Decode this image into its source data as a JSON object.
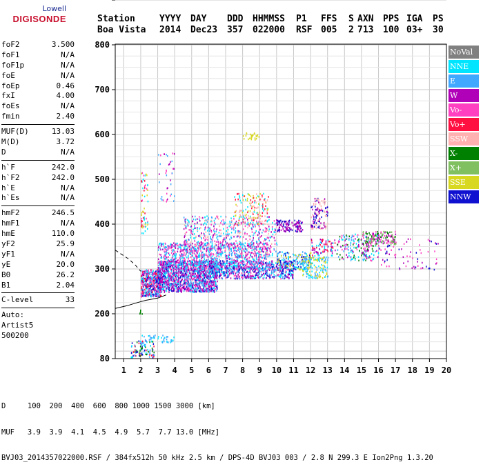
{
  "logo": {
    "line1": "Lowell",
    "line2": "DIGISONDE"
  },
  "header": {
    "labels": [
      "Station",
      "YYYY",
      "DAY",
      "DDD",
      "HHMMSS",
      "P1",
      "FFS",
      "S",
      "AXN",
      "PPS",
      "IGA",
      "PS"
    ],
    "values": [
      "Boa Vista",
      "2014",
      "Dec23",
      "357",
      "022000",
      "RSF",
      "005",
      "2",
      "713",
      "100",
      "03+",
      "30"
    ]
  },
  "params": [
    {
      "group": [
        {
          "k": "foF2",
          "v": "3.500"
        },
        {
          "k": "foF1",
          "v": "N/A"
        },
        {
          "k": "foF1p",
          "v": "N/A"
        },
        {
          "k": "foE",
          "v": "N/A"
        },
        {
          "k": "foEp",
          "v": "0.46"
        },
        {
          "k": "fxI",
          "v": "4.00"
        },
        {
          "k": "foEs",
          "v": "N/A"
        },
        {
          "k": "fmin",
          "v": "2.40"
        }
      ]
    },
    {
      "group": [
        {
          "k": "MUF(D)",
          "v": "13.03"
        },
        {
          "k": "M(D)",
          "v": "3.72"
        },
        {
          "k": "D",
          "v": "N/A"
        }
      ]
    },
    {
      "group": [
        {
          "k": "h`F",
          "v": "242.0"
        },
        {
          "k": "h`F2",
          "v": "242.0"
        },
        {
          "k": "h`E",
          "v": "N/A"
        },
        {
          "k": "h`Es",
          "v": "N/A"
        }
      ]
    },
    {
      "group": [
        {
          "k": "hmF2",
          "v": "246.5"
        },
        {
          "k": "hmF1",
          "v": "N/A"
        },
        {
          "k": "hmE",
          "v": "110.0"
        },
        {
          "k": "yF2",
          "v": "25.9"
        },
        {
          "k": "yF1",
          "v": "N/A"
        },
        {
          "k": "yE",
          "v": "20.0"
        },
        {
          "k": "B0",
          "v": "26.2"
        },
        {
          "k": "B1",
          "v": "2.04"
        }
      ]
    },
    {
      "group": [
        {
          "k": "C-level",
          "v": "33"
        }
      ]
    },
    {
      "group": [
        {
          "k": "Auto:",
          "v": ""
        },
        {
          "k": "Artist5",
          "v": ""
        },
        {
          "k": "500200",
          "v": ""
        }
      ]
    }
  ],
  "legend": [
    {
      "label": "NoVal",
      "color": "#808080"
    },
    {
      "label": "NNE",
      "color": "#00e5ff"
    },
    {
      "label": "E",
      "color": "#40a8ff"
    },
    {
      "label": "W",
      "color": "#b000b8"
    },
    {
      "label": "Vo-",
      "color": "#ff40c0"
    },
    {
      "label": "Vo+",
      "color": "#ff1040"
    },
    {
      "label": "SSW",
      "color": "#ffb0b0"
    },
    {
      "label": "X-",
      "color": "#008000"
    },
    {
      "label": "X+",
      "color": "#80c060"
    },
    {
      "label": "SSE",
      "color": "#d8d820"
    },
    {
      "label": "NNW",
      "color": "#1010d0"
    }
  ],
  "footer": {
    "line1": "D     100  200  400  600  800 1000 1500 3000 [km]",
    "line2": "MUF   3.9  3.9  4.1  4.5  4.9  5.7  7.7 13.0 [MHz]",
    "line3": "BVJ03_2014357022000.RSF / 384fx512h 50 kHz 2.5 km / DPS-4D BVJ03 003 / 2.8 N 299.3 E Ion2Png 1.3.20"
  },
  "chart_data": {
    "type": "scatter",
    "xlim": [
      0.5,
      20
    ],
    "ylim": [
      80,
      900
    ],
    "x_ticks": [
      1,
      2,
      3,
      4,
      5,
      6,
      7,
      8,
      9,
      10,
      11,
      12,
      13,
      14,
      15,
      16,
      17,
      18,
      19,
      20
    ],
    "y_ticks": [
      80,
      200,
      300,
      400,
      500,
      600,
      700,
      800,
      900
    ],
    "grid": true,
    "clusters": [
      {
        "x": [
          2.0,
          3.2
        ],
        "y": [
          240,
          300
        ],
        "n": 500,
        "colors": [
          3,
          4,
          5,
          2,
          1,
          10
        ]
      },
      {
        "x": [
          3.0,
          6.5
        ],
        "y": [
          250,
          320
        ],
        "n": 1400,
        "colors": [
          3,
          2,
          10,
          4,
          1,
          3
        ]
      },
      {
        "x": [
          3.0,
          9.5
        ],
        "y": [
          300,
          360
        ],
        "n": 900,
        "colors": [
          1,
          2,
          3,
          4
        ]
      },
      {
        "x": [
          4.5,
          10.0
        ],
        "y": [
          330,
          420
        ],
        "n": 600,
        "colors": [
          3,
          4,
          6,
          1,
          2
        ]
      },
      {
        "x": [
          6.0,
          11.0
        ],
        "y": [
          280,
          320
        ],
        "n": 700,
        "colors": [
          3,
          10,
          1,
          2,
          4
        ]
      },
      {
        "x": [
          7.5,
          9.5
        ],
        "y": [
          400,
          470
        ],
        "n": 150,
        "colors": [
          9,
          6,
          1,
          5
        ]
      },
      {
        "x": [
          8.0,
          9.0
        ],
        "y": [
          590,
          605
        ],
        "n": 25,
        "colors": [
          9
        ]
      },
      {
        "x": [
          10.0,
          11.5
        ],
        "y": [
          385,
          410
        ],
        "n": 120,
        "colors": [
          10,
          3
        ]
      },
      {
        "x": [
          10.0,
          12.0
        ],
        "y": [
          300,
          340
        ],
        "n": 180,
        "colors": [
          9,
          10,
          1,
          2
        ]
      },
      {
        "x": [
          11.5,
          13.0
        ],
        "y": [
          280,
          330
        ],
        "n": 150,
        "colors": [
          9,
          1,
          2
        ]
      },
      {
        "x": [
          12.0,
          13.0
        ],
        "y": [
          390,
          460
        ],
        "n": 120,
        "colors": [
          10,
          6,
          3
        ]
      },
      {
        "x": [
          12.0,
          13.5
        ],
        "y": [
          330,
          370
        ],
        "n": 80,
        "colors": [
          5,
          3,
          1
        ]
      },
      {
        "x": [
          13.5,
          16.0
        ],
        "y": [
          320,
          380
        ],
        "n": 200,
        "colors": [
          1,
          2,
          3,
          4,
          7
        ]
      },
      {
        "x": [
          15.0,
          17.0
        ],
        "y": [
          355,
          385
        ],
        "n": 150,
        "colors": [
          7,
          8,
          3,
          4
        ]
      },
      {
        "x": [
          16.0,
          19.5
        ],
        "y": [
          300,
          370
        ],
        "n": 70,
        "colors": [
          3,
          10,
          4
        ]
      },
      {
        "x": [
          1.4,
          2.8
        ],
        "y": [
          85,
          130
        ],
        "n": 90,
        "colors": [
          7,
          1,
          2,
          10,
          5
        ]
      },
      {
        "x": [
          2.0,
          4.0
        ],
        "y": [
          125,
          145
        ],
        "n": 40,
        "colors": [
          1,
          2
        ]
      },
      {
        "x": [
          2.0,
          2.4
        ],
        "y": [
          380,
          520
        ],
        "n": 60,
        "colors": [
          9,
          5,
          4,
          1
        ]
      },
      {
        "x": [
          3.0,
          4.0
        ],
        "y": [
          450,
          560
        ],
        "n": 40,
        "colors": [
          3,
          4,
          2
        ]
      },
      {
        "x": [
          1.9,
          2.1
        ],
        "y": [
          200,
          210
        ],
        "n": 6,
        "colors": [
          7
        ]
      }
    ],
    "profile_solid": {
      "x": [
        0.5,
        1.2,
        1.8,
        2.3,
        3.0,
        3.5
      ],
      "y": [
        212,
        218,
        225,
        230,
        235,
        242
      ]
    },
    "profile_dashed": {
      "x": [
        0.5,
        0.9,
        1.3,
        1.7,
        2.0
      ],
      "y": [
        342,
        332,
        322,
        308,
        295
      ]
    }
  }
}
